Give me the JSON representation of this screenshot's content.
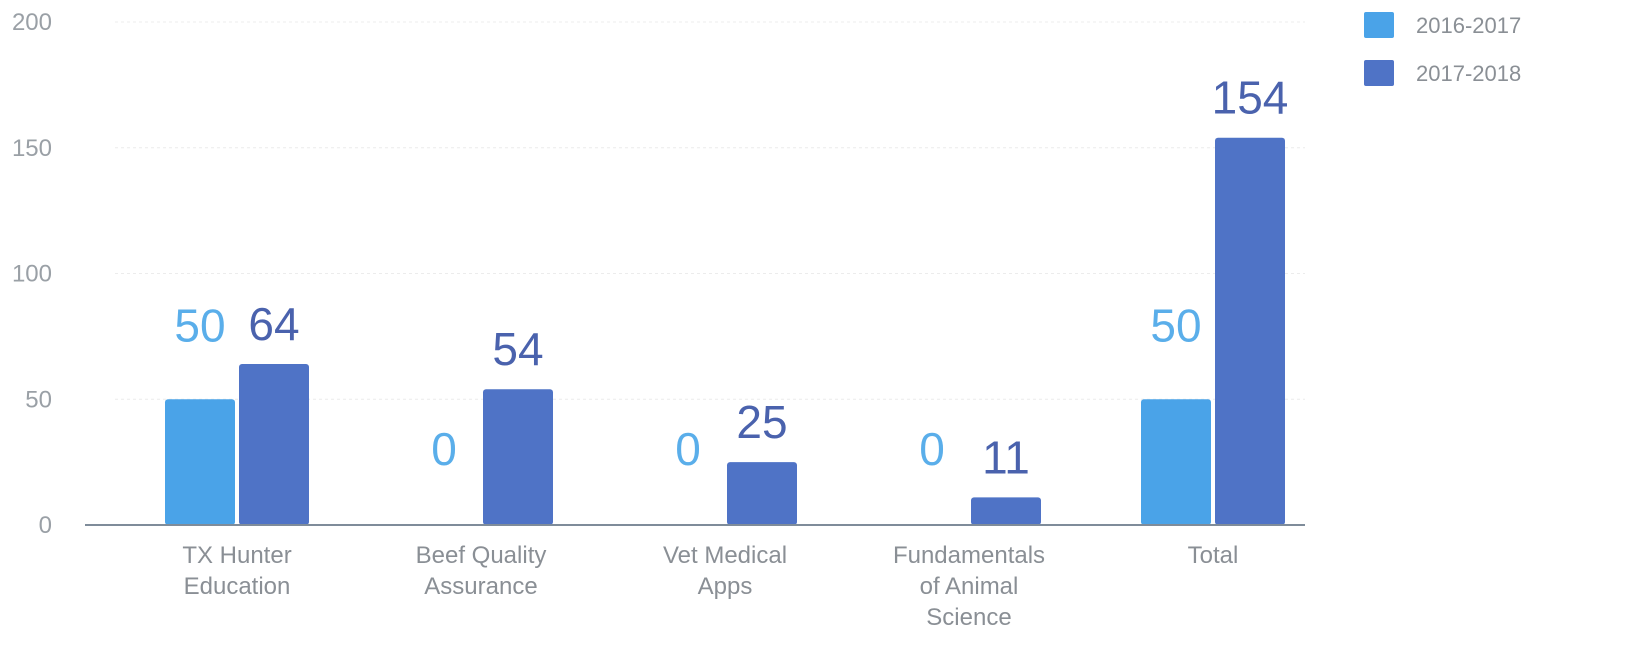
{
  "chart_data": {
    "type": "bar",
    "categories": [
      [
        "TX Hunter",
        "Education"
      ],
      [
        "Beef Quality",
        "Assurance"
      ],
      [
        "Vet Medical",
        "Apps"
      ],
      [
        "Fundamentals",
        "of Animal",
        "Science"
      ],
      [
        "Total"
      ]
    ],
    "series": [
      {
        "name": "2016-2017",
        "values": [
          50,
          0,
          0,
          0,
          50
        ],
        "color": "#4aa3e8",
        "label_color": "#5aaeea"
      },
      {
        "name": "2017-2018",
        "values": [
          64,
          54,
          25,
          11,
          154
        ],
        "color": "#4f73c6",
        "label_color": "#4a62ad"
      }
    ],
    "ylim": [
      0,
      200
    ],
    "yticks": [
      0,
      50,
      100,
      150,
      200
    ],
    "grid": true,
    "legend_position": "top-right",
    "title": "",
    "xlabel": "",
    "ylabel": ""
  }
}
